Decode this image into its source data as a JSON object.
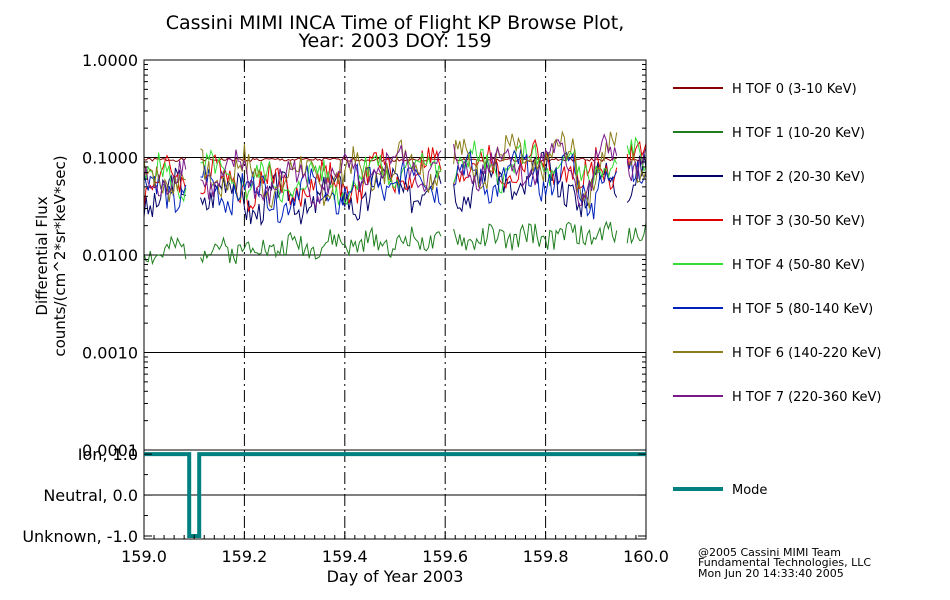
{
  "chart_data": [
    {
      "type": "line",
      "title": "Cassini MIMI INCA Time of Flight KP Browse Plot,",
      "subtitle": "Year: 2003 DOY: 159",
      "ylabel_line1": "Differential Flux",
      "ylabel_line2": "counts/(cm^2*sr*keV*sec)",
      "yscale": "log",
      "ylim": [
        0.0001,
        1.0
      ],
      "y_ticks": [
        "1.0000",
        "0.1000",
        "0.0100",
        "0.0010",
        "0.0001"
      ],
      "xlim": [
        159.0,
        160.0
      ],
      "dashed_x": [
        159.2,
        159.4,
        159.6,
        159.8
      ],
      "series": [
        {
          "name": "H TOF 0 (3-10 KeV)",
          "color": "#8b0000",
          "base": 0.095,
          "amp": 0.08,
          "seed": 1
        },
        {
          "name": "H TOF 1 (10-20 KeV)",
          "color": "#1e7e1e",
          "base": 0.0105,
          "amp": 0.25,
          "seed": 2
        },
        {
          "name": "H TOF 2 (20-30 KeV)",
          "color": "#000066",
          "base": 0.04,
          "amp": 0.35,
          "seed": 3
        },
        {
          "name": "H TOF 3 (30-50 KeV)",
          "color": "#e00000",
          "base": 0.055,
          "amp": 0.3,
          "seed": 4
        },
        {
          "name": "H TOF 4 (50-80 KeV)",
          "color": "#33dd33",
          "base": 0.058,
          "amp": 0.3,
          "seed": 5
        },
        {
          "name": "H TOF 5 (80-140 KeV)",
          "color": "#0022bb",
          "base": 0.045,
          "amp": 0.33,
          "seed": 6
        },
        {
          "name": "H TOF 6 (140-220 KeV)",
          "color": "#8b7d1a",
          "base": 0.065,
          "amp": 0.35,
          "seed": 7
        },
        {
          "name": "H TOF 7 (220-360 KeV)",
          "color": "#7a1a8a",
          "base": 0.06,
          "amp": 0.3,
          "seed": 8
        }
      ],
      "gaps": [
        [
          159.085,
          159.11
        ],
        [
          159.595,
          159.615
        ],
        [
          159.945,
          159.96
        ]
      ]
    },
    {
      "type": "line",
      "ylim": [
        -1.0,
        1.0
      ],
      "y_ticks": [
        "Ion, 1.0",
        "Neutral, 0.0",
        "Unknown, -1.0"
      ],
      "series": [
        {
          "name": "Mode",
          "color": "#008080",
          "points": [
            [
              159.0,
              1.0
            ],
            [
              159.09,
              1.0
            ],
            [
              159.09,
              -1.0
            ],
            [
              159.11,
              -1.0
            ],
            [
              159.11,
              1.0
            ],
            [
              160.0,
              1.0
            ]
          ]
        }
      ]
    }
  ],
  "x_ticks": [
    "159.0",
    "159.2",
    "159.4",
    "159.6",
    "159.8",
    "160.0"
  ],
  "xlabel": "Day of Year 2003",
  "credits": [
    "@2005 Cassini MIMI Team",
    "Fundamental Technologies, LLC",
    "Mon Jun 20 14:33:40 2005"
  ]
}
